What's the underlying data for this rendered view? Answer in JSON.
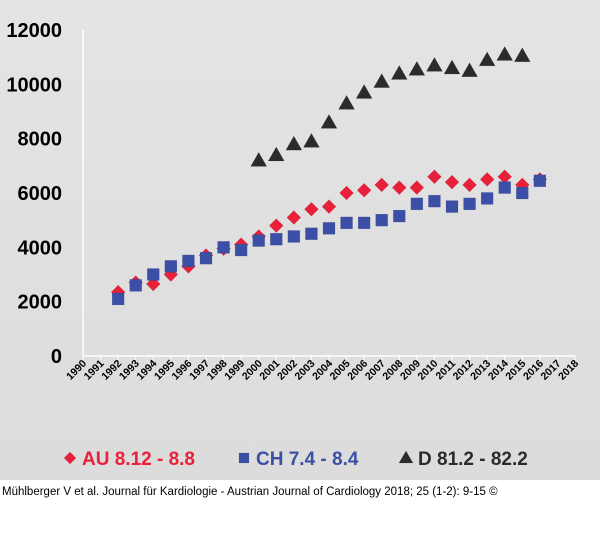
{
  "chart_data": {
    "type": "scatter",
    "title": "",
    "xlabel": "",
    "ylabel": "",
    "ylim": [
      0,
      12000
    ],
    "yticks": [
      0,
      2000,
      4000,
      6000,
      8000,
      10000,
      12000
    ],
    "xlim": [
      1990,
      2018
    ],
    "xticks": [
      "1990",
      "1991",
      "1992",
      "1993",
      "1994",
      "1995",
      "1996",
      "1997",
      "1998",
      "1999",
      "2000",
      "2001",
      "2002",
      "2003",
      "2004",
      "2005",
      "2006",
      "2007",
      "2008",
      "2009",
      "2010",
      "2011",
      "2012",
      "2013",
      "2014",
      "2015",
      "2016",
      "2017",
      "2018"
    ],
    "grid": false,
    "legend_position": "bottom",
    "series": [
      {
        "name": "AU 8.12 - 8.8",
        "marker": "diamond",
        "color": "#e8203a",
        "x": [
          1992,
          1993,
          1994,
          1995,
          1996,
          1997,
          1998,
          1999,
          2000,
          2001,
          2002,
          2003,
          2004,
          2005,
          2006,
          2007,
          2008,
          2009,
          2010,
          2011,
          2012,
          2013,
          2014,
          2015,
          2016
        ],
        "y": [
          2350,
          2700,
          2650,
          3000,
          3300,
          3700,
          3950,
          4100,
          4400,
          4800,
          5100,
          5400,
          5500,
          6000,
          6100,
          6300,
          6200,
          6200,
          6600,
          6400,
          6300,
          6500,
          6600,
          6300,
          6500
        ]
      },
      {
        "name": "CH 7.4 - 8.4",
        "marker": "square",
        "color": "#3c4fa6",
        "x": [
          1992,
          1993,
          1994,
          1995,
          1996,
          1997,
          1998,
          1999,
          2000,
          2001,
          2002,
          2003,
          2004,
          2005,
          2006,
          2007,
          2008,
          2009,
          2010,
          2011,
          2012,
          2013,
          2014,
          2015,
          2016
        ],
        "y": [
          2100,
          2600,
          3000,
          3300,
          3500,
          3600,
          4000,
          3900,
          4250,
          4300,
          4400,
          4500,
          4700,
          4900,
          4900,
          5000,
          5150,
          5600,
          5700,
          5500,
          5600,
          5800,
          6200,
          6000,
          6450
        ]
      },
      {
        "name": "D 81.2 - 82.2",
        "marker": "triangle",
        "color": "#2b2b2b",
        "x": [
          2000,
          2001,
          2002,
          2003,
          2004,
          2005,
          2006,
          2007,
          2008,
          2009,
          2010,
          2011,
          2012,
          2013,
          2014,
          2015
        ],
        "y": [
          7200,
          7400,
          7800,
          7900,
          8600,
          9300,
          9700,
          10100,
          10400,
          10550,
          10700,
          10600,
          10500,
          10900,
          11100,
          11050
        ]
      }
    ]
  },
  "citation": "Mühlberger V et al. Journal für Kardiologie - Austrian Journal of Cardiology 2018; 25 (1-2): 9-15 ©"
}
